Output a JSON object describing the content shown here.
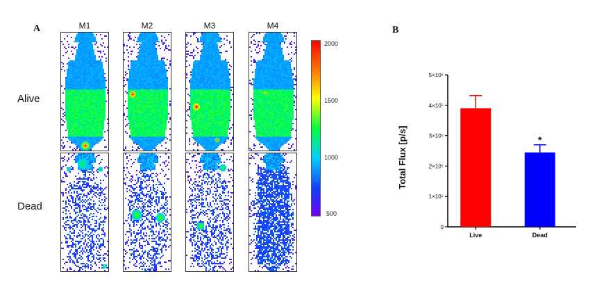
{
  "panel_a": {
    "letter": "A",
    "columns": [
      "M1",
      "M2",
      "M3",
      "M4"
    ],
    "rows": [
      "Alive",
      "Dead"
    ],
    "scale_ticks": [
      "2000",
      "1500",
      "1000",
      "500"
    ]
  },
  "panel_b": {
    "letter": "B"
  },
  "chart_data": [
    {
      "type": "bar",
      "title": "",
      "ylabel": "Total Flux [p/s]",
      "xlabel": "",
      "categories": [
        "Live",
        "Dead"
      ],
      "values": [
        390000,
        245000
      ],
      "errors": [
        42000,
        25000
      ],
      "colors": [
        "#ff0000",
        "#0000ff"
      ],
      "ylim": [
        0,
        500000
      ],
      "yticks": [
        "0",
        "1×10⁵",
        "2×10⁵",
        "3×10⁵",
        "4×10⁵",
        "5×10⁵"
      ],
      "significance": [
        {
          "category": "Dead",
          "label": "*"
        }
      ]
    }
  ]
}
